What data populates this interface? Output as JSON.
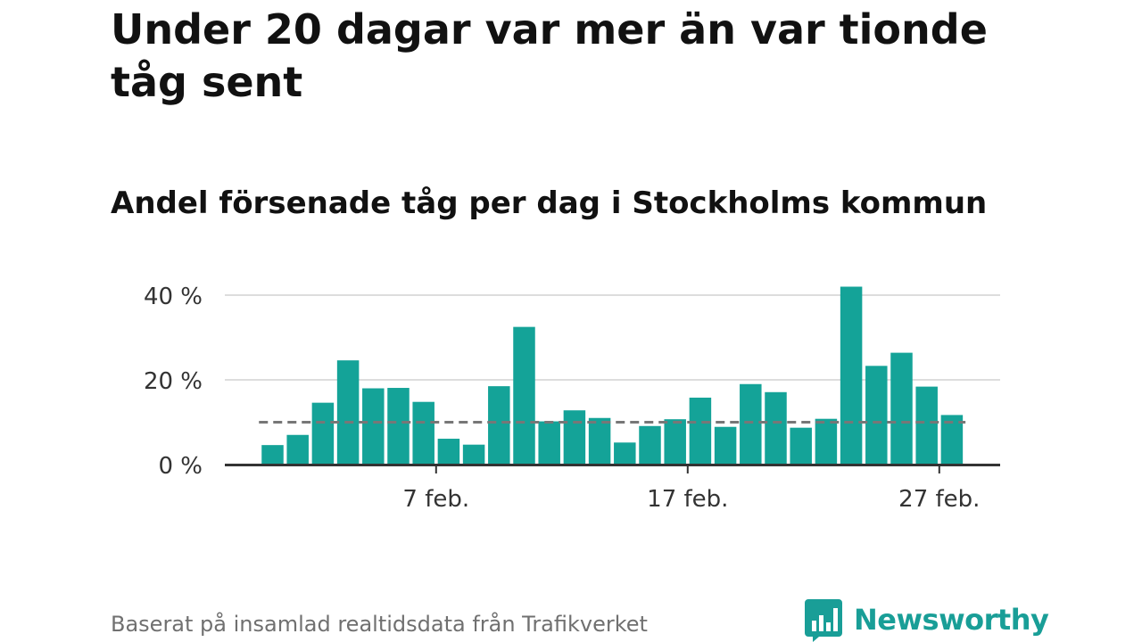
{
  "title": "Under 20 dagar var mer än var tionde tåg sent",
  "subtitle": "Andel försenade tåg per dag i Stockholms kommun",
  "source": "Baserat på insamlad realtidsdata från Trafikverket",
  "brand": {
    "name": "Newsworthy",
    "icon": "newsworthy-logo-icon"
  },
  "colors": {
    "bar": "#14a398",
    "reference_line": "#777777",
    "grid": "#dddddd",
    "axis": "#333333",
    "brand": "#199e97"
  },
  "chart_data": {
    "type": "bar",
    "title": "Under 20 dagar var mer än var tionde tåg sent",
    "subtitle": "Andel försenade tåg per dag i Stockholms kommun",
    "xlabel": "",
    "ylabel": "",
    "x": [
      "2023-02-01",
      "2023-02-02",
      "2023-02-03",
      "2023-02-04",
      "2023-02-05",
      "2023-02-06",
      "2023-02-07",
      "2023-02-08",
      "2023-02-09",
      "2023-02-10",
      "2023-02-11",
      "2023-02-12",
      "2023-02-13",
      "2023-02-14",
      "2023-02-15",
      "2023-02-16",
      "2023-02-17",
      "2023-02-18",
      "2023-02-19",
      "2023-02-20",
      "2023-02-21",
      "2023-02-22",
      "2023-02-23",
      "2023-02-24",
      "2023-02-25",
      "2023-02-26",
      "2023-02-27",
      "2023-02-28"
    ],
    "values": [
      4.6,
      7,
      14.6,
      24.6,
      18,
      18.1,
      14.8,
      6.1,
      4.7,
      18.5,
      32.5,
      10.2,
      12.8,
      11,
      5.2,
      9.1,
      10.7,
      15.8,
      8.9,
      19,
      17.1,
      8.7,
      10.8,
      42,
      23.3,
      26.4,
      18.4,
      11.7
    ],
    "reference_line": {
      "value": 10,
      "style": "dashed"
    },
    "ylim": [
      0,
      40
    ],
    "yticks": [
      {
        "value": 0,
        "label": "0 %"
      },
      {
        "value": 20,
        "label": "20 %"
      },
      {
        "value": 40,
        "label": "40 %"
      }
    ],
    "xticks": [
      {
        "date": "2023-02-07",
        "label": "7 feb."
      },
      {
        "date": "2023-02-17",
        "label": "17 feb."
      },
      {
        "date": "2023-02-27",
        "label": "27 feb."
      }
    ],
    "grid": true,
    "legend": "none"
  }
}
